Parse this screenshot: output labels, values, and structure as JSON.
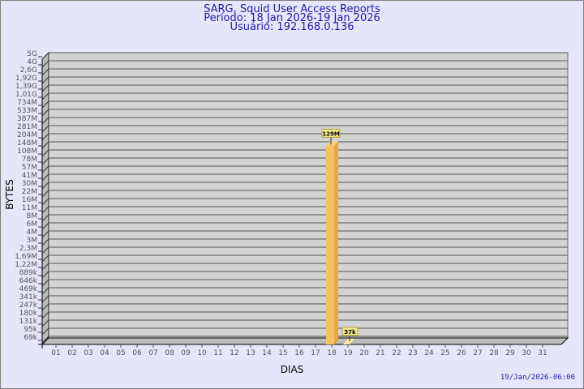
{
  "header": {
    "title": "SARG, Squid User Access Reports",
    "period": "Período: 18 Jan 2026-19 Jan 2026",
    "user": "Usuário: 192.168.0.136"
  },
  "footer": {
    "timestamp": "19/Jan/2026-06:00"
  },
  "colors": {
    "background": "#e6e6fa",
    "plot": "#d3d3d3",
    "bar": "#f8c060",
    "title": "#1c1ca8"
  },
  "chart_data": {
    "type": "bar",
    "xlabel": "DIAS",
    "ylabel": "BYTES",
    "y_scale": "log",
    "y_tick_labels": [
      "5G",
      "4G",
      "2,6G",
      "1,92G",
      "1,39G",
      "1,01G",
      "734M",
      "533M",
      "387M",
      "281M",
      "204M",
      "148M",
      "108M",
      "78M",
      "57M",
      "41M",
      "30M",
      "22M",
      "16M",
      "11M",
      "8M",
      "6M",
      "4M",
      "3M",
      "2,3M",
      "1,69M",
      "1,22M",
      "889k",
      "646k",
      "469k",
      "341k",
      "247k",
      "180k",
      "131k",
      "95k",
      "69k"
    ],
    "categories": [
      "01",
      "02",
      "03",
      "04",
      "05",
      "06",
      "07",
      "08",
      "09",
      "10",
      "11",
      "12",
      "13",
      "14",
      "15",
      "16",
      "17",
      "18",
      "19",
      "20",
      "21",
      "22",
      "23",
      "24",
      "25",
      "26",
      "27",
      "28",
      "29",
      "30",
      "31"
    ],
    "bars": [
      {
        "day": "18",
        "value": 129000000,
        "label": "129M"
      },
      {
        "day": "19",
        "value": 37000,
        "label": "37k"
      }
    ],
    "grid": true
  }
}
